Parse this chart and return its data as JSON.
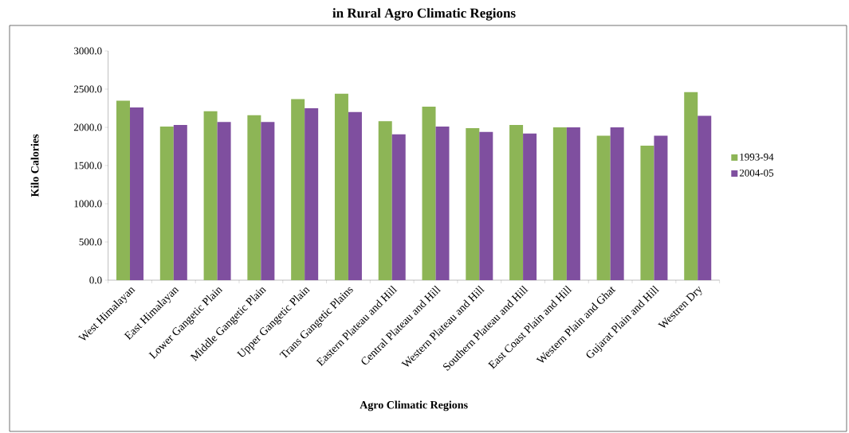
{
  "chart_data": {
    "type": "bar",
    "title": "in Rural Agro Climatic Regions",
    "xlabel": "Agro Climatic Regions",
    "ylabel": "Kilo Calories",
    "categories": [
      "West Himalayan",
      "East Himalayan",
      "Lower Gangetic Plain",
      "Middle Gangetic Plain",
      "Upper Gangetic Plain",
      "Trans Gangetic Plains",
      "Eastern Plateau and Hill",
      "Central Plateau and Hill",
      "Western Plateau and Hill",
      "Southern Plateau and Hill",
      "East Coast Plain and Hill",
      "Western Plain and Ghat",
      "Gujarat Plain and Hill",
      "Westren Dry"
    ],
    "series": [
      {
        "name": "1993-94",
        "color": "#8db556",
        "values": [
          2350,
          2010,
          2210,
          2160,
          2370,
          2440,
          2080,
          2270,
          1990,
          2030,
          2000,
          1890,
          1760,
          2460
        ]
      },
      {
        "name": "2004-05",
        "color": "#7f4f9f",
        "values": [
          2260,
          2030,
          2070,
          2070,
          2250,
          2200,
          1910,
          2010,
          1940,
          1920,
          2000,
          2000,
          1890,
          2150
        ]
      }
    ],
    "ylim": [
      0,
      3000
    ],
    "yticks": [
      {
        "value": 0,
        "label": "0.0"
      },
      {
        "value": 500,
        "label": "500.0"
      },
      {
        "value": 1000,
        "label": "1000.0"
      },
      {
        "value": 1500,
        "label": "1500.0"
      },
      {
        "value": 2000,
        "label": "2000.0"
      },
      {
        "value": 2500,
        "label": "2500.0"
      },
      {
        "value": 3000,
        "label": "3000.0"
      }
    ],
    "legend": "right",
    "grid": false
  }
}
